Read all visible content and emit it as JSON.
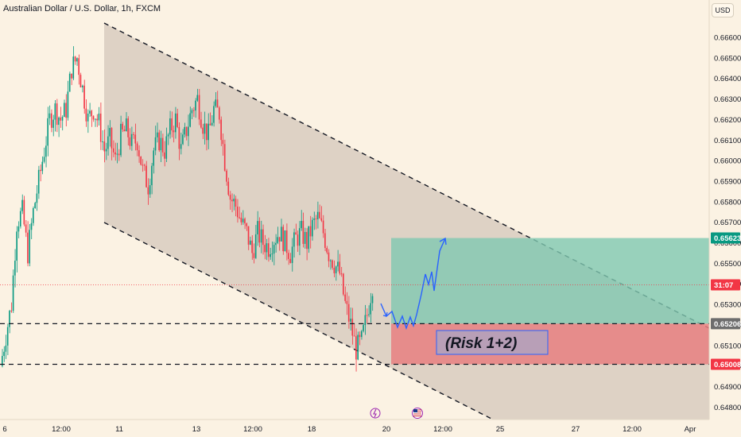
{
  "header": {
    "symbol_title": "Australian Dollar / U.S. Dollar, 1h, FXCM",
    "currency_button": "USD"
  },
  "colors": {
    "background": "#fbf2e3",
    "bull": "#089981",
    "bear": "#f23645",
    "target_zone": "#7fc8b0",
    "stop_zone": "#e88080",
    "channel_fill": "#d8cdc0",
    "projection_line": "#2962ff"
  },
  "annotations": {
    "risk_label": "(Risk 1+2)"
  },
  "chart_data": {
    "type": "candlestick",
    "title": "Australian Dollar / U.S. Dollar, 1h, FXCM",
    "y_range": [
      0.6477,
      0.667
    ],
    "y_ticks": [
      "0.66600",
      "0.66500",
      "0.66400",
      "0.66300",
      "0.66200",
      "0.66100",
      "0.66000",
      "0.65900",
      "0.65800",
      "0.65700",
      "0.65600",
      "0.65500",
      "0.65400",
      "0.65300",
      "0.65200",
      "0.65100",
      "0.65000",
      "0.64900",
      "0.64800"
    ],
    "x_tick_labels": [
      "6",
      "12:00",
      "11",
      "13",
      "12:00",
      "18",
      "20",
      "12:00",
      "25",
      "27",
      "12:00",
      "Apr"
    ],
    "price_tags": [
      {
        "label": "0.65623",
        "value": 0.65623,
        "kind": "target"
      },
      {
        "label": "31:07",
        "value": 0.65395,
        "kind": "current"
      },
      {
        "label": "0.65206",
        "value": 0.65206,
        "kind": "entry"
      },
      {
        "label": "0.65008",
        "value": 0.65008,
        "kind": "stop"
      }
    ],
    "levels": [
      {
        "name": "entry",
        "value": 0.65206,
        "style": "dashed"
      },
      {
        "name": "stop",
        "value": 0.65008,
        "style": "dashed"
      }
    ],
    "channel": {
      "upper": {
        "from": [
          "Mar 10 22:00",
          0.6669
        ],
        "to": [
          "Apr 1",
          0.6519
        ]
      },
      "lower": {
        "from": [
          "Mar 10 22:00",
          0.6569
        ],
        "to": [
          "Mar 25",
          0.6479
        ]
      }
    },
    "position": {
      "type": "long",
      "entry": 0.65206,
      "target": 0.65623,
      "stop": 0.65008,
      "from": "Mar 20",
      "to": "Apr 2"
    },
    "close_path": [
      0.65,
      0.6515,
      0.653,
      0.657,
      0.6575,
      0.6555,
      0.6575,
      0.659,
      0.6605,
      0.662,
      0.6625,
      0.662,
      0.6625,
      0.6645,
      0.665,
      0.6635,
      0.662,
      0.6625,
      0.6618,
      0.6605,
      0.661,
      0.66,
      0.6612,
      0.6615,
      0.6608,
      0.661,
      0.6595,
      0.6588,
      0.6605,
      0.661,
      0.6605,
      0.6615,
      0.662,
      0.6605,
      0.6615,
      0.6625,
      0.663,
      0.6618,
      0.6612,
      0.6625,
      0.6623,
      0.66,
      0.6582,
      0.6578,
      0.657,
      0.6565,
      0.6555,
      0.6565,
      0.656,
      0.6558,
      0.6562,
      0.6565,
      0.656,
      0.6555,
      0.6562,
      0.6565,
      0.656,
      0.6568,
      0.6572,
      0.6565,
      0.6555,
      0.655,
      0.6545,
      0.653,
      0.652,
      0.6508,
      0.6512,
      0.6525,
      0.654
    ]
  }
}
